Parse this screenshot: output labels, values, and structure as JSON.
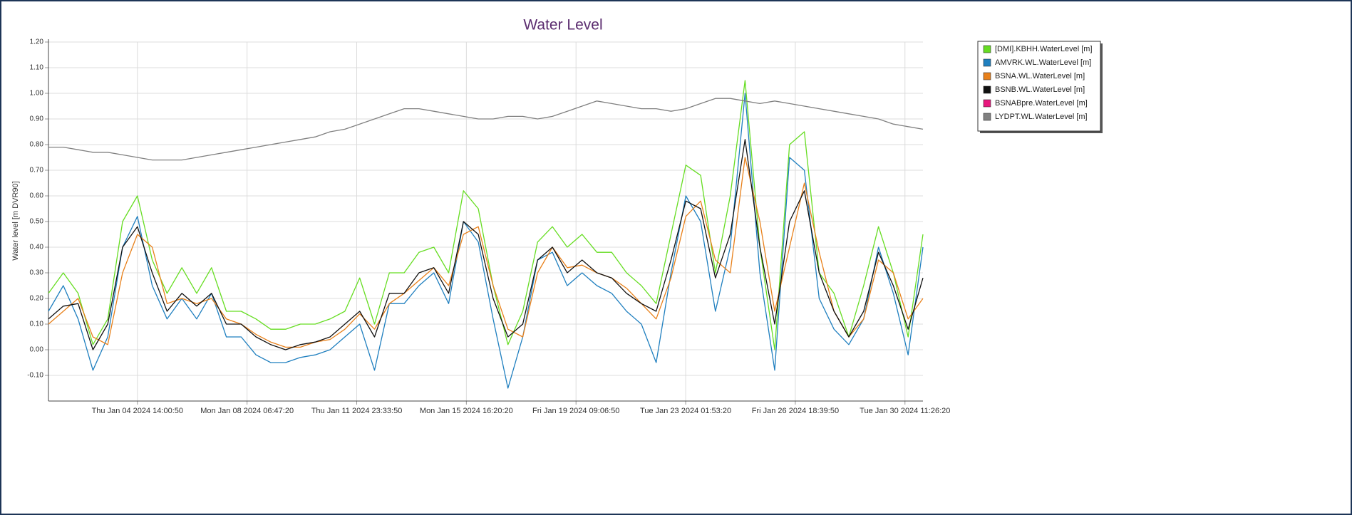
{
  "chart_data": {
    "type": "line",
    "title": "Water Level",
    "y_label": "Water level [m DVR90]",
    "x": [
      "2024-01-01T14:00:00",
      "2024-01-02T02:00:00",
      "2024-01-02T14:00:00",
      "2024-01-03T02:00:00",
      "2024-01-03T14:00:00",
      "2024-01-04T02:00:00",
      "2024-01-04T14:00:00",
      "2024-01-05T02:00:00",
      "2024-01-05T14:00:00",
      "2024-01-06T02:00:00",
      "2024-01-06T14:00:00",
      "2024-01-07T02:00:00",
      "2024-01-07T14:00:00",
      "2024-01-08T02:00:00",
      "2024-01-08T14:00:00",
      "2024-01-09T02:00:00",
      "2024-01-09T14:00:00",
      "2024-01-10T02:00:00",
      "2024-01-10T14:00:00",
      "2024-01-11T02:00:00",
      "2024-01-11T14:00:00",
      "2024-01-12T02:00:00",
      "2024-01-12T14:00:00",
      "2024-01-13T02:00:00",
      "2024-01-13T14:00:00",
      "2024-01-14T02:00:00",
      "2024-01-14T14:00:00",
      "2024-01-15T02:00:00",
      "2024-01-15T14:00:00",
      "2024-01-16T02:00:00",
      "2024-01-16T14:00:00",
      "2024-01-17T02:00:00",
      "2024-01-17T14:00:00",
      "2024-01-18T02:00:00",
      "2024-01-18T14:00:00",
      "2024-01-19T02:00:00",
      "2024-01-19T14:00:00",
      "2024-01-20T02:00:00",
      "2024-01-20T14:00:00",
      "2024-01-21T02:00:00",
      "2024-01-21T14:00:00",
      "2024-01-22T02:00:00",
      "2024-01-22T14:00:00",
      "2024-01-23T02:00:00",
      "2024-01-23T14:00:00",
      "2024-01-24T02:00:00",
      "2024-01-24T14:00:00",
      "2024-01-25T02:00:00",
      "2024-01-25T14:00:00",
      "2024-01-26T02:00:00",
      "2024-01-26T14:00:00",
      "2024-01-27T02:00:00",
      "2024-01-27T14:00:00",
      "2024-01-28T02:00:00",
      "2024-01-28T14:00:00",
      "2024-01-29T02:00:00",
      "2024-01-29T14:00:00",
      "2024-01-30T02:00:00",
      "2024-01-30T14:00:00",
      "2024-01-31T02:00:00"
    ],
    "xlim": [
      "2024-01-01T14:00:00",
      "2024-01-31T02:00:00"
    ],
    "xticks": [
      {
        "value": "2024-01-04T14:00:50",
        "label": "Thu Jan 04 2024 14:00:50"
      },
      {
        "value": "2024-01-08T06:47:20",
        "label": "Mon Jan 08 2024 06:47:20"
      },
      {
        "value": "2024-01-11T23:33:50",
        "label": "Thu Jan 11 2024 23:33:50"
      },
      {
        "value": "2024-01-15T16:20:20",
        "label": "Mon Jan 15 2024 16:20:20"
      },
      {
        "value": "2024-01-19T09:06:50",
        "label": "Fri Jan 19 2024 09:06:50"
      },
      {
        "value": "2024-01-23T01:53:20",
        "label": "Tue Jan 23 2024 01:53:20"
      },
      {
        "value": "2024-01-26T18:39:50",
        "label": "Fri Jan 26 2024 18:39:50"
      },
      {
        "value": "2024-01-30T11:26:20",
        "label": "Tue Jan 30 2024 11:26:20"
      }
    ],
    "ylim": [
      -0.2,
      1.2
    ],
    "yticks": [
      {
        "value": -0.1,
        "label": "-0.10"
      },
      {
        "value": 0,
        "label": "0.00"
      },
      {
        "value": 0.1,
        "label": "0.10"
      },
      {
        "value": 0.2,
        "label": "0.20"
      },
      {
        "value": 0.3,
        "label": "0.30"
      },
      {
        "value": 0.4,
        "label": "0.40"
      },
      {
        "value": 0.5,
        "label": "0.50"
      },
      {
        "value": 0.6,
        "label": "0.60"
      },
      {
        "value": 0.7,
        "label": "0.70"
      },
      {
        "value": 0.8,
        "label": "0.80"
      },
      {
        "value": 0.9,
        "label": "0.90"
      },
      {
        "value": 1.0,
        "label": "1.00"
      },
      {
        "value": 1.1,
        "label": "1.10"
      },
      {
        "value": 1.2,
        "label": "1.20"
      }
    ],
    "grid": true,
    "legend": "right",
    "series": [
      {
        "name": "[DMI].KBHH.WaterLevel [m]",
        "color": "#66dd22",
        "values": [
          0.22,
          0.3,
          0.22,
          0.02,
          0.12,
          0.5,
          0.6,
          0.35,
          0.22,
          0.32,
          0.22,
          0.32,
          0.15,
          0.15,
          0.12,
          0.08,
          0.08,
          0.1,
          0.1,
          0.12,
          0.15,
          0.28,
          0.1,
          0.3,
          0.3,
          0.38,
          0.4,
          0.3,
          0.62,
          0.55,
          0.25,
          0.02,
          0.15,
          0.42,
          0.48,
          0.4,
          0.45,
          0.38,
          0.38,
          0.3,
          0.25,
          0.18,
          0.45,
          0.72,
          0.68,
          0.3,
          0.6,
          1.05,
          0.4,
          0.0,
          0.8,
          0.85,
          0.3,
          0.22,
          0.05,
          0.25,
          0.48,
          0.3,
          0.05,
          0.45
        ]
      },
      {
        "name": "AMVRK.WL.WaterLevel [m]",
        "color": "#1f7fbf",
        "values": [
          0.15,
          0.25,
          0.12,
          -0.08,
          0.05,
          0.4,
          0.52,
          0.25,
          0.12,
          0.2,
          0.12,
          0.22,
          0.05,
          0.05,
          -0.02,
          -0.05,
          -0.05,
          -0.03,
          -0.02,
          0.0,
          0.05,
          0.1,
          -0.08,
          0.18,
          0.18,
          0.25,
          0.3,
          0.18,
          0.5,
          0.42,
          0.12,
          -0.15,
          0.05,
          0.35,
          0.38,
          0.25,
          0.3,
          0.25,
          0.22,
          0.15,
          0.1,
          -0.05,
          0.3,
          0.6,
          0.5,
          0.15,
          0.4,
          1.0,
          0.3,
          -0.08,
          0.75,
          0.7,
          0.2,
          0.08,
          0.02,
          0.12,
          0.4,
          0.22,
          -0.02,
          0.4
        ]
      },
      {
        "name": "BSNA.WL.WaterLevel [m]",
        "color": "#e8801a",
        "values": [
          0.1,
          0.15,
          0.2,
          0.05,
          0.02,
          0.3,
          0.45,
          0.4,
          0.18,
          0.2,
          0.18,
          0.2,
          0.12,
          0.1,
          0.06,
          0.03,
          0.01,
          0.01,
          0.03,
          0.04,
          0.08,
          0.14,
          0.08,
          0.18,
          0.22,
          0.27,
          0.32,
          0.25,
          0.45,
          0.48,
          0.25,
          0.08,
          0.05,
          0.3,
          0.4,
          0.32,
          0.33,
          0.3,
          0.28,
          0.24,
          0.18,
          0.12,
          0.28,
          0.52,
          0.58,
          0.35,
          0.3,
          0.75,
          0.5,
          0.15,
          0.4,
          0.65,
          0.38,
          0.15,
          0.05,
          0.12,
          0.35,
          0.3,
          0.12,
          0.2
        ]
      },
      {
        "name": "BSNB.WL.WaterLevel [m]",
        "color": "#111111",
        "values": [
          0.12,
          0.17,
          0.18,
          0.0,
          0.1,
          0.4,
          0.48,
          0.3,
          0.15,
          0.22,
          0.17,
          0.22,
          0.1,
          0.1,
          0.05,
          0.02,
          0.0,
          0.02,
          0.03,
          0.05,
          0.1,
          0.15,
          0.05,
          0.22,
          0.22,
          0.3,
          0.32,
          0.22,
          0.5,
          0.45,
          0.2,
          0.05,
          0.1,
          0.35,
          0.4,
          0.3,
          0.35,
          0.3,
          0.28,
          0.22,
          0.18,
          0.15,
          0.35,
          0.58,
          0.55,
          0.28,
          0.45,
          0.82,
          0.4,
          0.1,
          0.5,
          0.62,
          0.3,
          0.15,
          0.05,
          0.15,
          0.38,
          0.25,
          0.08,
          0.28
        ]
      },
      {
        "name": "BSNABpre.WaterLevel [m]",
        "color": "#e8177d",
        "values": [
          null,
          null,
          null,
          null,
          null,
          null,
          null,
          null,
          null,
          null,
          null,
          null,
          null,
          null,
          null,
          null,
          null,
          null,
          null,
          null,
          null,
          null,
          null,
          null,
          null,
          null,
          null,
          null,
          null,
          null,
          null,
          null,
          null,
          null,
          null,
          null,
          null,
          null,
          null,
          null,
          null,
          null,
          null,
          null,
          null,
          null,
          null,
          null,
          null,
          null,
          null,
          null,
          null,
          null,
          null,
          null,
          null,
          null,
          null,
          null
        ]
      },
      {
        "name": "LYDPT.WL.WaterLevel [m]",
        "color": "#808080",
        "values": [
          0.79,
          0.79,
          0.78,
          0.77,
          0.77,
          0.76,
          0.75,
          0.74,
          0.74,
          0.74,
          0.75,
          0.76,
          0.77,
          0.78,
          0.79,
          0.8,
          0.81,
          0.82,
          0.83,
          0.85,
          0.86,
          0.88,
          0.9,
          0.92,
          0.94,
          0.94,
          0.93,
          0.92,
          0.91,
          0.9,
          0.9,
          0.91,
          0.91,
          0.9,
          0.91,
          0.93,
          0.95,
          0.97,
          0.96,
          0.95,
          0.94,
          0.94,
          0.93,
          0.94,
          0.96,
          0.98,
          0.98,
          0.97,
          0.96,
          0.97,
          0.96,
          0.95,
          0.94,
          0.93,
          0.92,
          0.91,
          0.9,
          0.88,
          0.87,
          0.86
        ]
      }
    ]
  }
}
